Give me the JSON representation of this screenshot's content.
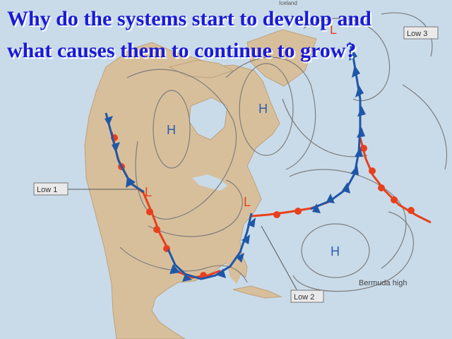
{
  "slide": {
    "title_line1": "Why do the  systems start to develop and",
    "title_line2": "what causes them to continue to grow?"
  },
  "map": {
    "pressure_labels": {
      "high_1": "H",
      "high_2": "H",
      "high_3": "H",
      "low_1": "L",
      "low_2": "L",
      "low_3": "L"
    },
    "callouts": {
      "low1": "Low 1",
      "low2": "Low 2",
      "low3": "Low 3",
      "bermuda": "Bermuda high",
      "iceland": "Iceland"
    },
    "colors": {
      "ocean": "#c9dbe9",
      "land": "#d8bf9b",
      "isobar": "#7d7d7d",
      "cold_front": "#1f57a8",
      "warm_front": "#e8401c",
      "title": "#1a1ad8",
      "high_label": "#2a5fa8",
      "low_label": "#e8401c"
    }
  }
}
